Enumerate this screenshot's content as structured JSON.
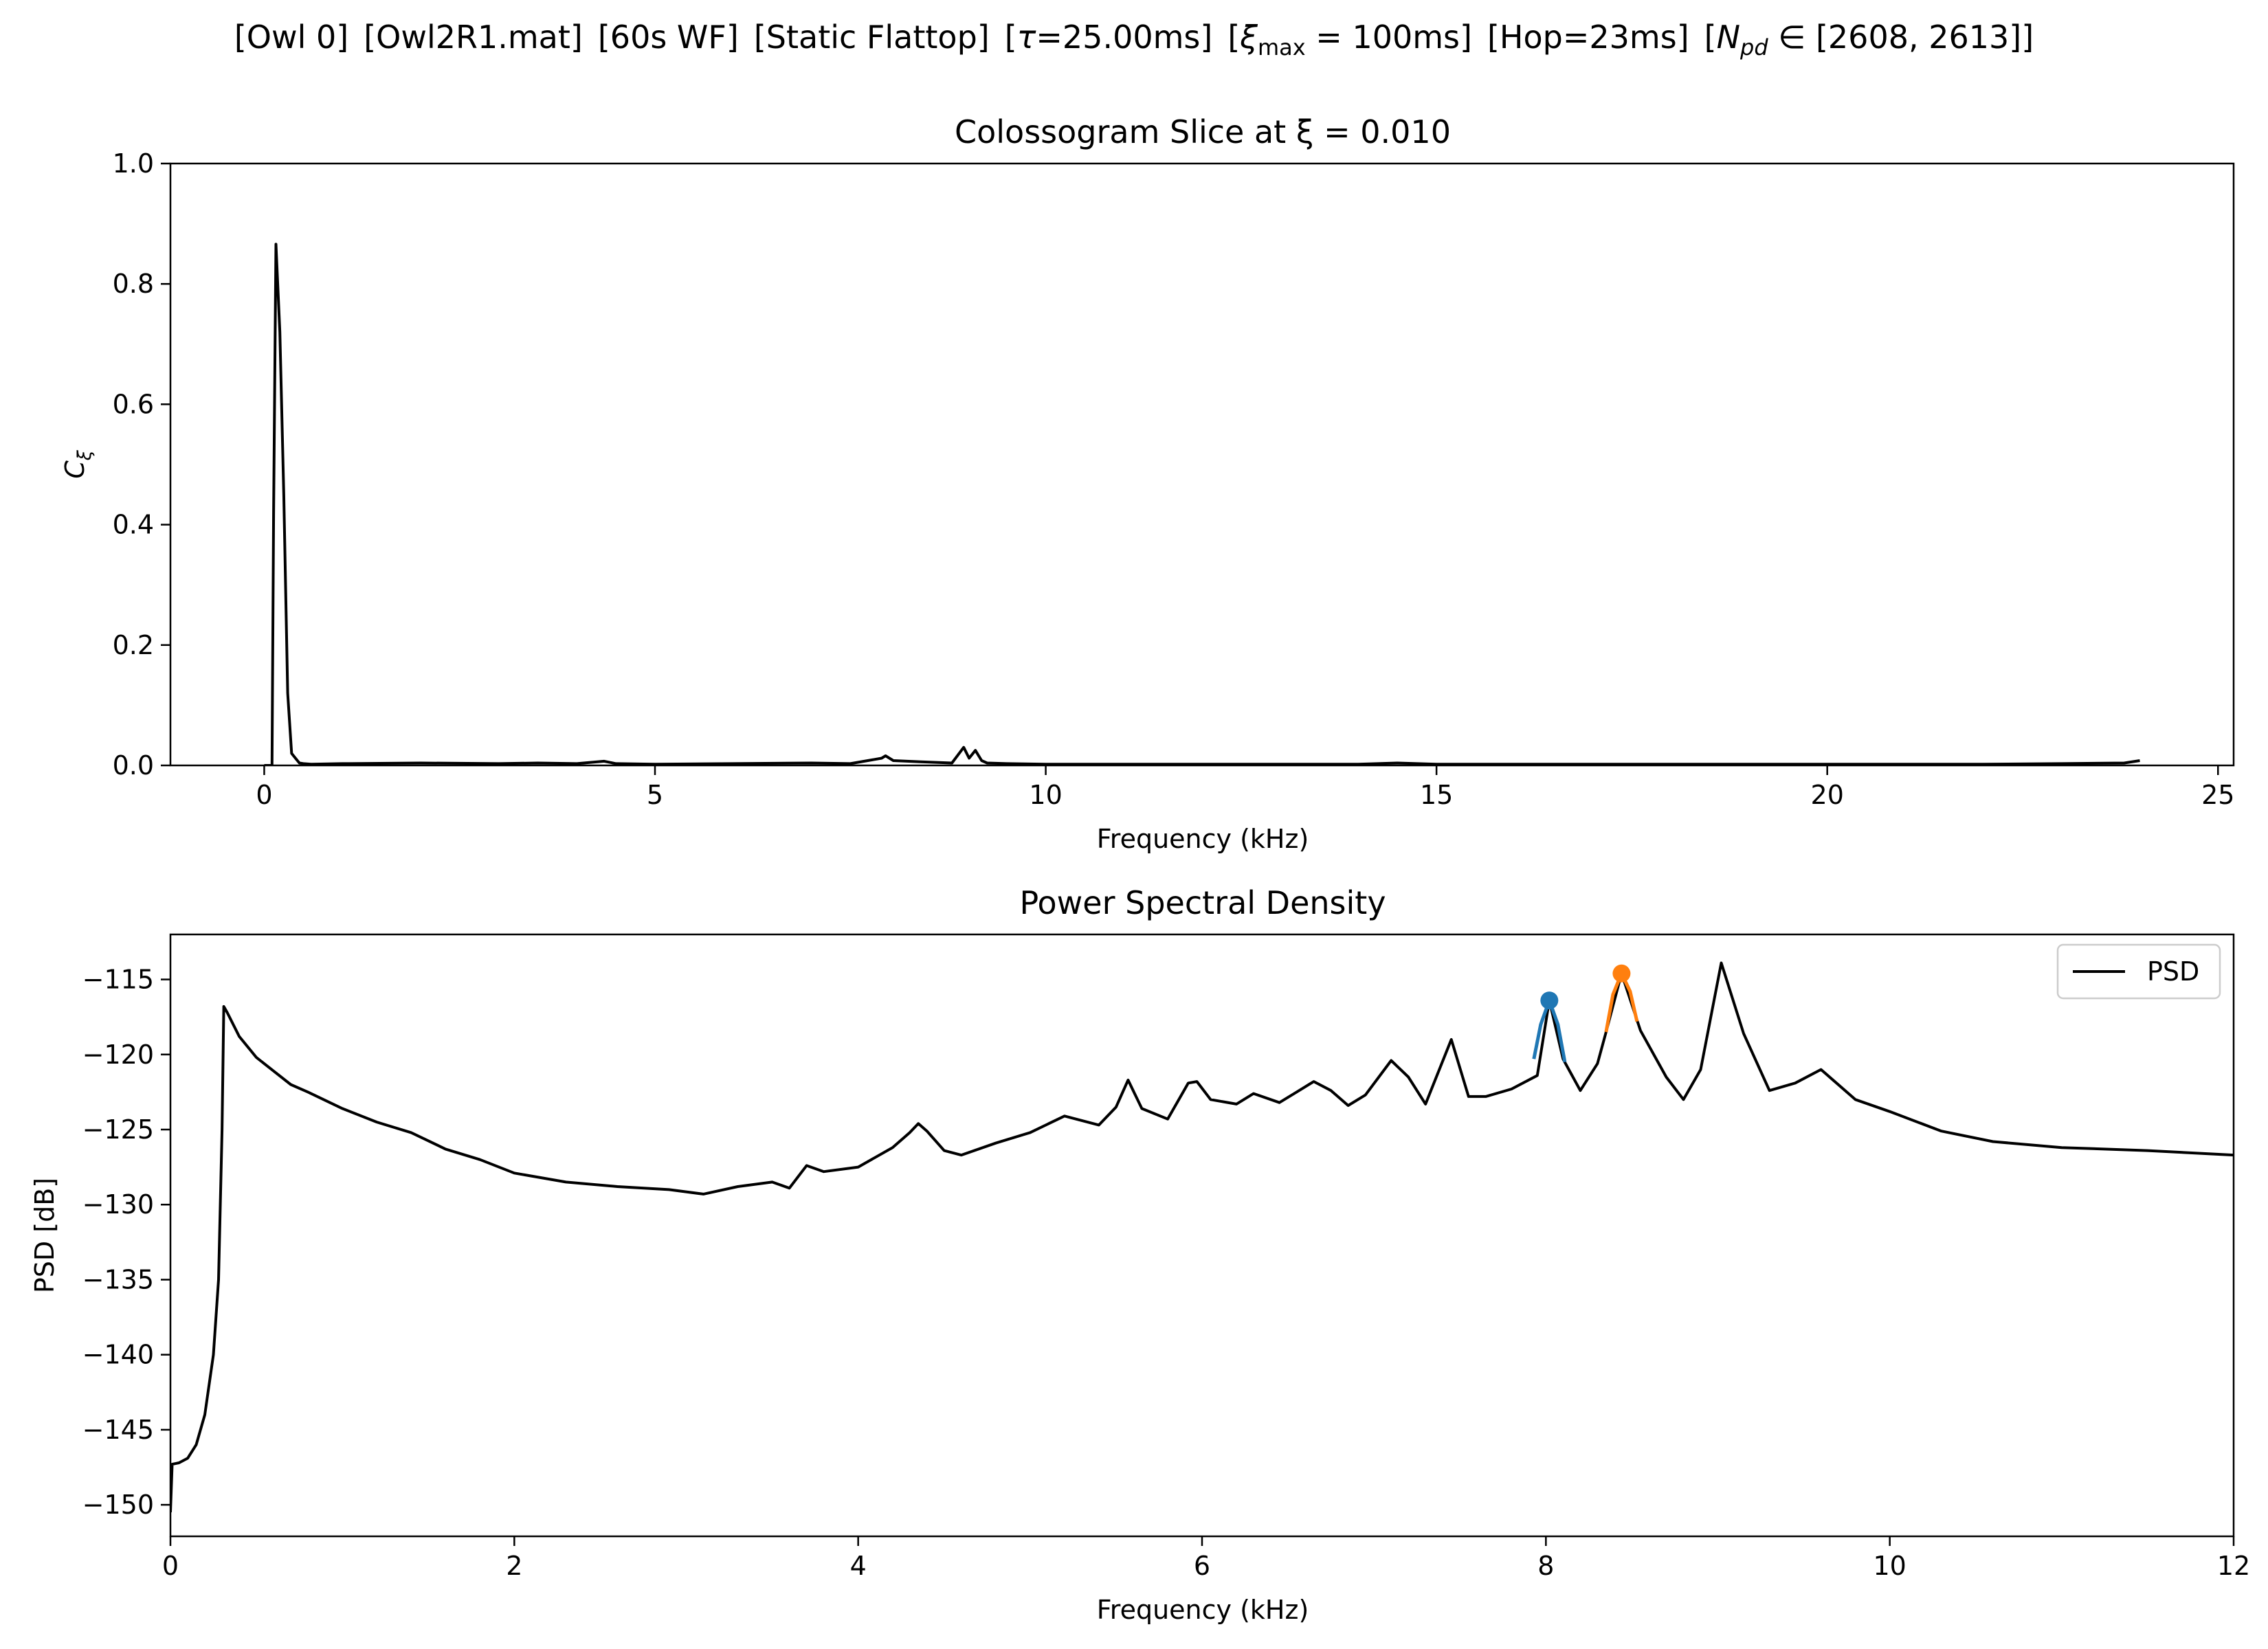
{
  "suptitle": {
    "parts": [
      {
        "kind": "text",
        "text": "[Owl 0]"
      },
      {
        "kind": "text",
        "text": "[Owl2R1.mat]"
      },
      {
        "kind": "text",
        "text": "[60s WF]"
      },
      {
        "kind": "text",
        "text": "[Static Flattop]"
      },
      {
        "kind": "math",
        "pre": "[",
        "sym": "τ",
        "post": "=25.00ms]"
      },
      {
        "kind": "math",
        "pre": "[",
        "sym": "ξ",
        "sub": "max",
        "post": " = 100ms]"
      },
      {
        "kind": "text",
        "text": "[Hop=23ms]"
      },
      {
        "kind": "math",
        "pre": "[",
        "sym": "N",
        "sub": "pd",
        "post": " ∈ [2608, 2613]]"
      }
    ]
  },
  "chart_data": [
    {
      "type": "line",
      "title": "Colossogram Slice at ξ = 0.010",
      "xlabel": "Frequency (kHz)",
      "ylabel": "C_ξ",
      "xlim": [
        -1.2,
        25.2
      ],
      "ylim": [
        0.0,
        1.0
      ],
      "xticks": [
        0,
        5,
        10,
        15,
        20,
        25
      ],
      "yticks": [
        0.0,
        0.2,
        0.4,
        0.6,
        0.8,
        1.0
      ],
      "xtick_labels": [
        "0",
        "5",
        "10",
        "15",
        "20",
        "25"
      ],
      "ytick_labels": [
        "0.0",
        "0.2",
        "0.4",
        "0.6",
        "0.8",
        "1.0"
      ],
      "grid": false,
      "series": [
        {
          "color": "#000000",
          "x": [
            0.0,
            0.1,
            0.12,
            0.15,
            0.2,
            0.25,
            0.3,
            0.35,
            0.4,
            0.45,
            0.5,
            0.6,
            1.0,
            2.0,
            3.0,
            3.5,
            4.0,
            4.35,
            4.5,
            5.0,
            6.0,
            7.0,
            7.5,
            7.9,
            7.95,
            8.05,
            8.4,
            8.8,
            8.95,
            9.02,
            9.1,
            9.18,
            9.25,
            9.5,
            10.0,
            12.0,
            14.0,
            14.5,
            15.0,
            16.0,
            18.0,
            20.0,
            22.0,
            23.0,
            23.8,
            24.0
          ],
          "y": [
            0.0,
            0.0,
            0.42,
            0.866,
            0.72,
            0.45,
            0.12,
            0.02,
            0.012,
            0.004,
            0.003,
            0.002,
            0.003,
            0.004,
            0.003,
            0.004,
            0.003,
            0.007,
            0.003,
            0.002,
            0.003,
            0.004,
            0.003,
            0.012,
            0.016,
            0.008,
            0.006,
            0.004,
            0.03,
            0.012,
            0.025,
            0.008,
            0.004,
            0.003,
            0.002,
            0.002,
            0.002,
            0.004,
            0.002,
            0.002,
            0.002,
            0.002,
            0.002,
            0.003,
            0.004,
            0.008
          ]
        }
      ]
    },
    {
      "type": "line",
      "title": "Power Spectral Density",
      "xlabel": "Frequency (kHz)",
      "ylabel": "PSD [dB]",
      "xlim": [
        0,
        12
      ],
      "ylim": [
        -152.1,
        -112.0
      ],
      "xticks": [
        0,
        2,
        4,
        6,
        8,
        10,
        12
      ],
      "yticks": [
        -115,
        -120,
        -125,
        -130,
        -135,
        -140,
        -145,
        -150
      ],
      "xtick_labels": [
        "0",
        "2",
        "4",
        "6",
        "8",
        "10",
        "12"
      ],
      "ytick_labels": [
        "−115",
        "−120",
        "−125",
        "−130",
        "−135",
        "−140",
        "−145",
        "−150"
      ],
      "grid": false,
      "legend": {
        "position": "top-right",
        "entries": [
          "PSD"
        ]
      },
      "series": [
        {
          "name": "PSD",
          "color": "#000000",
          "x": [
            0.0,
            0.01,
            0.05,
            0.1,
            0.15,
            0.2,
            0.25,
            0.28,
            0.3,
            0.31,
            0.33,
            0.4,
            0.5,
            0.6,
            0.7,
            0.8,
            1.0,
            1.2,
            1.4,
            1.6,
            1.8,
            2.0,
            2.3,
            2.6,
            2.9,
            3.1,
            3.3,
            3.5,
            3.6,
            3.7,
            3.8,
            4.0,
            4.2,
            4.3,
            4.35,
            4.4,
            4.5,
            4.6,
            4.8,
            5.0,
            5.2,
            5.4,
            5.5,
            5.57,
            5.65,
            5.8,
            5.92,
            5.97,
            6.05,
            6.2,
            6.3,
            6.45,
            6.55,
            6.65,
            6.75,
            6.85,
            6.95,
            7.1,
            7.2,
            7.3,
            7.45,
            7.55,
            7.65,
            7.8,
            7.95,
            8.02,
            8.1,
            8.2,
            8.3,
            8.35,
            8.44,
            8.55,
            8.7,
            8.8,
            8.9,
            9.02,
            9.15,
            9.3,
            9.45,
            9.6,
            9.8,
            10.0,
            10.3,
            10.6,
            11.0,
            11.5,
            12.0
          ],
          "y": [
            -150.5,
            -147.3,
            -147.2,
            -146.9,
            -146.0,
            -144.0,
            -140.0,
            -135.0,
            -125.0,
            -116.8,
            -117.2,
            -118.8,
            -120.2,
            -121.1,
            -122.0,
            -122.5,
            -123.6,
            -124.5,
            -125.2,
            -126.3,
            -127.0,
            -127.9,
            -128.5,
            -128.8,
            -129.0,
            -129.3,
            -128.8,
            -128.5,
            -128.9,
            -127.4,
            -127.8,
            -127.5,
            -126.2,
            -125.2,
            -124.6,
            -125.1,
            -126.4,
            -126.7,
            -125.9,
            -125.2,
            -124.1,
            -124.7,
            -123.5,
            -121.7,
            -123.6,
            -124.3,
            -121.9,
            -121.8,
            -123.0,
            -123.3,
            -122.6,
            -123.2,
            -122.5,
            -121.8,
            -122.4,
            -123.4,
            -122.7,
            -120.4,
            -121.5,
            -123.3,
            -119.0,
            -122.8,
            -122.8,
            -122.3,
            -121.4,
            -116.4,
            -120.3,
            -122.4,
            -120.6,
            -118.5,
            -114.6,
            -118.4,
            -121.5,
            -123.0,
            -121.0,
            -113.9,
            -118.6,
            -122.4,
            -121.9,
            -121.0,
            -123.0,
            -123.8,
            -125.1,
            -125.8,
            -126.2,
            -126.4,
            -126.7
          ]
        }
      ],
      "highlights": [
        {
          "color": "#1f77b4",
          "x": [
            7.93,
            7.97,
            8.02,
            8.07,
            8.11
          ],
          "y": [
            -120.3,
            -118.0,
            -116.4,
            -118.0,
            -120.5
          ],
          "peak": {
            "x": 8.02,
            "y": -116.4
          }
        },
        {
          "color": "#ff7f0e",
          "x": [
            8.35,
            8.39,
            8.44,
            8.49,
            8.53
          ],
          "y": [
            -118.5,
            -116.0,
            -114.6,
            -115.8,
            -117.8
          ],
          "peak": {
            "x": 8.44,
            "y": -114.6
          }
        }
      ]
    }
  ]
}
